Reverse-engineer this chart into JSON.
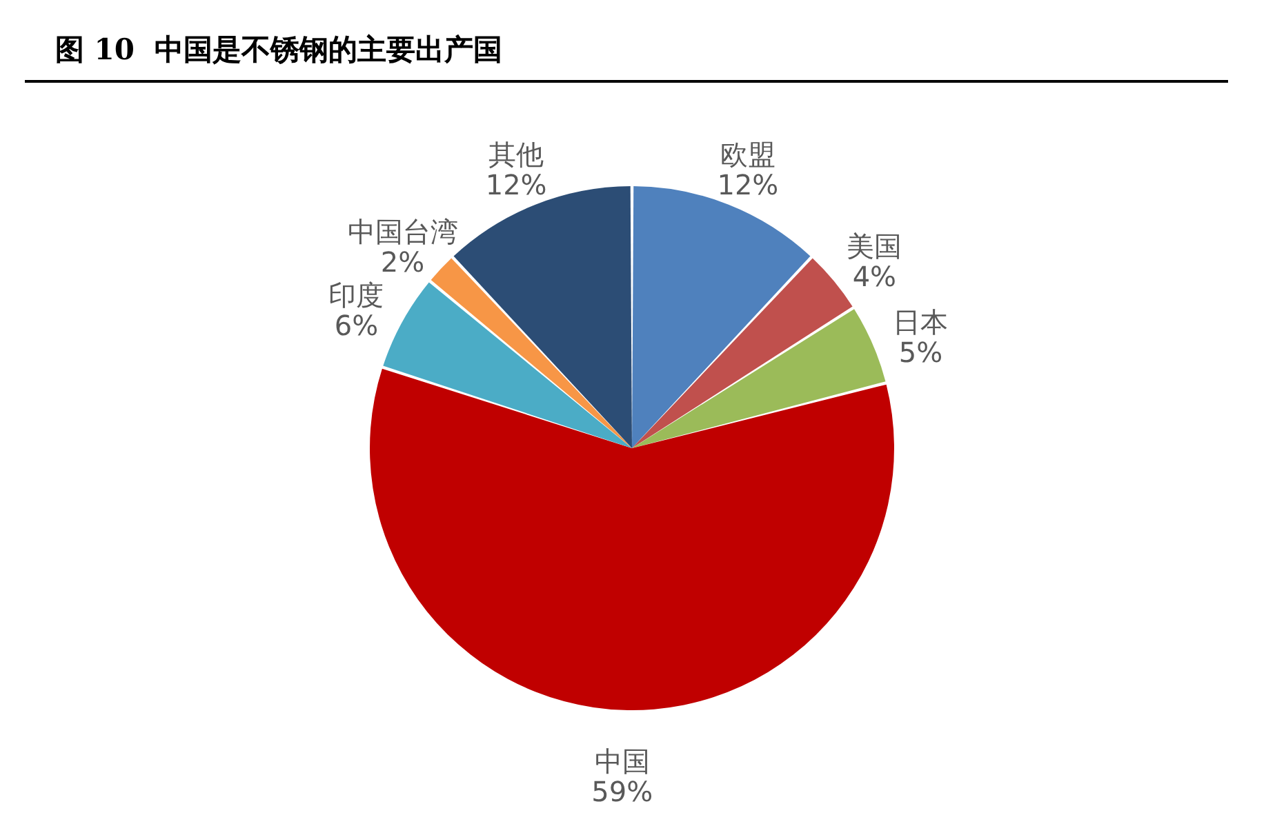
{
  "chart_data": {
    "type": "pie",
    "title": "图 10  中国是不锈钢的主要出产国",
    "categories": [
      "欧盟",
      "美国",
      "日本",
      "中国",
      "印度",
      "中国台湾",
      "其他"
    ],
    "values": [
      12,
      4,
      5,
      59,
      6,
      2,
      12
    ],
    "colors": [
      "#4f81bd",
      "#c0504d",
      "#9bbb59",
      "#c00000",
      "#4bacc6",
      "#f79646",
      "#2c4d75"
    ],
    "value_labels": [
      "12%",
      "4%",
      "5%",
      "59%",
      "6%",
      "2%",
      "12%"
    ]
  }
}
